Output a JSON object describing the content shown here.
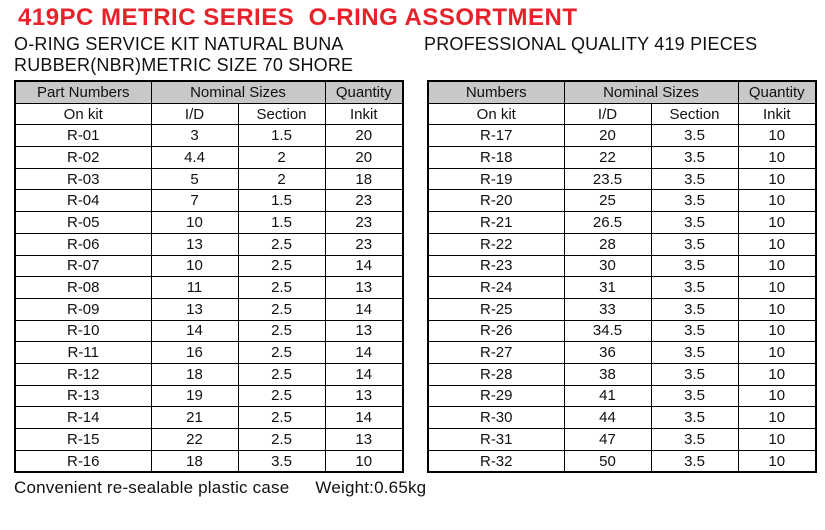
{
  "page": {
    "title": "419PC METRIC SERIES  O-RING ASSORTMENT",
    "subtitle_left_line1": "O-RING SERVICE KIT NATURAL BUNA",
    "subtitle_left_line2": "RUBBER(NBR)METRIC SIZE 70 SHORE",
    "subtitle_right": "PROFESSIONAL QUALITY 419 PIECES"
  },
  "colors": {
    "title_red": "#e8222a",
    "header_gray": "#c8c8c8",
    "border": "#000000"
  },
  "tables": [
    {
      "name": "left-parts-table",
      "header_row1": [
        "Part Numbers",
        "Nominal Sizes",
        "Quantity"
      ],
      "header_row2": [
        "On kit",
        "I/D",
        "Section",
        "Inkit"
      ],
      "rows": [
        [
          "R-01",
          "3",
          "1.5",
          "20"
        ],
        [
          "R-02",
          "4.4",
          "2",
          "20"
        ],
        [
          "R-03",
          "5",
          "2",
          "18"
        ],
        [
          "R-04",
          "7",
          "1.5",
          "23"
        ],
        [
          "R-05",
          "10",
          "1.5",
          "23"
        ],
        [
          "R-06",
          "13",
          "2.5",
          "23"
        ],
        [
          "R-07",
          "10",
          "2.5",
          "14"
        ],
        [
          "R-08",
          "11",
          "2.5",
          "13"
        ],
        [
          "R-09",
          "13",
          "2.5",
          "14"
        ],
        [
          "R-10",
          "14",
          "2.5",
          "13"
        ],
        [
          "R-11",
          "16",
          "2.5",
          "14"
        ],
        [
          "R-12",
          "18",
          "2.5",
          "14"
        ],
        [
          "R-13",
          "19",
          "2.5",
          "13"
        ],
        [
          "R-14",
          "21",
          "2.5",
          "14"
        ],
        [
          "R-15",
          "22",
          "2.5",
          "13"
        ],
        [
          "R-16",
          "18",
          "3.5",
          "10"
        ]
      ]
    },
    {
      "name": "right-parts-table",
      "header_row1": [
        "Numbers",
        "Nominal Sizes",
        "Quantity"
      ],
      "header_row2": [
        "On kit",
        "I/D",
        "Section",
        "Inkit"
      ],
      "rows": [
        [
          "R-17",
          "20",
          "3.5",
          "10"
        ],
        [
          "R-18",
          "22",
          "3.5",
          "10"
        ],
        [
          "R-19",
          "23.5",
          "3.5",
          "10"
        ],
        [
          "R-20",
          "25",
          "3.5",
          "10"
        ],
        [
          "R-21",
          "26.5",
          "3.5",
          "10"
        ],
        [
          "R-22",
          "28",
          "3.5",
          "10"
        ],
        [
          "R-23",
          "30",
          "3.5",
          "10"
        ],
        [
          "R-24",
          "31",
          "3.5",
          "10"
        ],
        [
          "R-25",
          "33",
          "3.5",
          "10"
        ],
        [
          "R-26",
          "34.5",
          "3.5",
          "10"
        ],
        [
          "R-27",
          "36",
          "3.5",
          "10"
        ],
        [
          "R-28",
          "38",
          "3.5",
          "10"
        ],
        [
          "R-29",
          "41",
          "3.5",
          "10"
        ],
        [
          "R-30",
          "44",
          "3.5",
          "10"
        ],
        [
          "R-31",
          "47",
          "3.5",
          "10"
        ],
        [
          "R-32",
          "50",
          "3.5",
          "10"
        ]
      ]
    }
  ],
  "footer": {
    "case_text": "Convenient re-sealable plastic case",
    "weight_text": "Weight:0.65kg"
  }
}
